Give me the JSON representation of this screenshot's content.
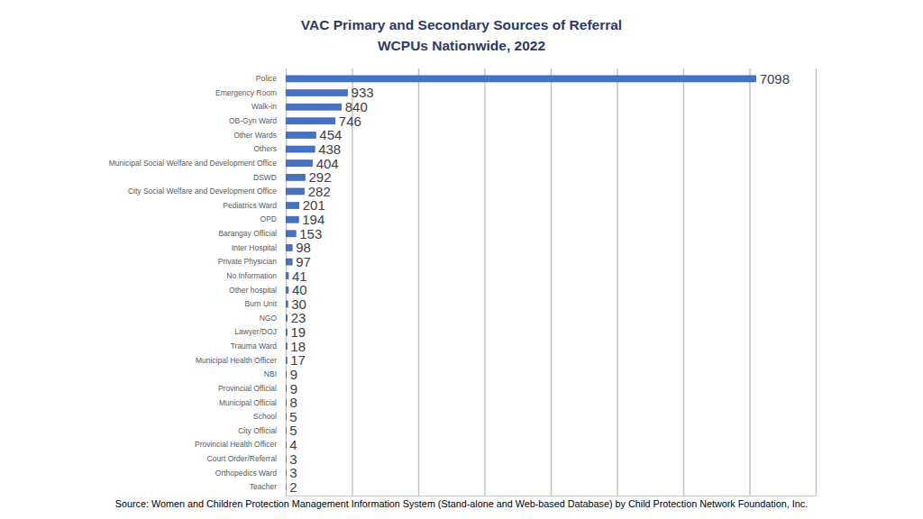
{
  "chart_data": {
    "type": "bar",
    "orientation": "horizontal",
    "title": "VAC Primary and Secondary Sources of Referral",
    "subtitle": "WCPUs Nationwide, 2022",
    "source": "Source: Women and Children Protection Management Information System (Stand-alone and Web-based Database) by Child Protection Network Foundation, Inc.",
    "categories": [
      "Police",
      "Emergency Room",
      "Walk-in",
      "OB-Gyn Ward",
      "Other Wards",
      "Others",
      "Municipal Social Welfare and Development Office",
      "DSWD",
      "City Social Welfare and Development Office",
      "Pediatrics Ward",
      "OPD",
      "Barangay Official",
      "Inter Hospital",
      "Private Physician",
      "No Information",
      "Other hospital",
      "Burn Unit",
      "NGO",
      "Lawyer/DOJ",
      "Trauma Ward",
      "Municipal Health Officer",
      "NBI",
      "Provincial Official",
      "Municipal Official",
      "School",
      "City Official",
      "Provincial Health Officer",
      "Court Order/Referral",
      "Orthopedics Ward",
      "Teacher"
    ],
    "values": [
      7098,
      933,
      840,
      746,
      454,
      438,
      404,
      292,
      282,
      201,
      194,
      153,
      98,
      97,
      41,
      40,
      30,
      23,
      19,
      18,
      17,
      9,
      9,
      8,
      5,
      5,
      4,
      3,
      3,
      2
    ],
    "color": "#4472c4",
    "xlim": [
      0,
      8000
    ],
    "xticks": [
      0,
      1000,
      2000,
      3000,
      4000,
      5000,
      6000,
      7000,
      8000
    ],
    "grid": true,
    "data_labels": true,
    "tick_labels": "y"
  }
}
